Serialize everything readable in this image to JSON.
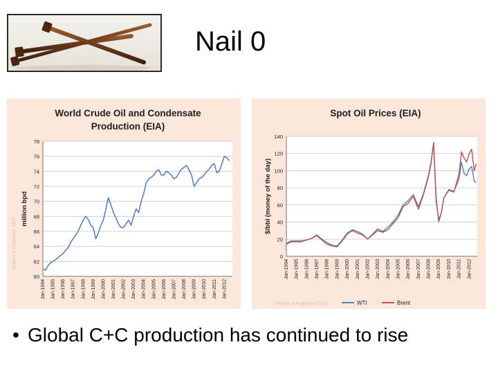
{
  "slide": {
    "title": "Nail 0",
    "bullet": "Global C+C production has continued to rise"
  },
  "photo": {
    "subject": "rusty-nails-photo"
  },
  "colors": {
    "panel_bg": "#fbe6da",
    "production_line": "#4472c4",
    "wti_line": "#4f81bd",
    "brent_line": "#c0504d"
  },
  "chart_data": [
    {
      "type": "line",
      "title": "World Crude Oil and Condensate Production (EIA)",
      "title_lines": [
        "World Crude Oil and Condensate",
        "Production (EIA)"
      ],
      "xlabel": "",
      "ylabel": "million bpd",
      "ylim": [
        60,
        78
      ],
      "yticks": [
        60,
        62,
        64,
        66,
        68,
        70,
        72,
        74,
        76,
        78
      ],
      "x_tick_labels": [
        "Jan-1994",
        "Jan-1995",
        "Jan-1996",
        "Jan-1997",
        "Jan-1998",
        "Jan-1999",
        "Jan-2000",
        "Jan-2001",
        "Jan-2002",
        "Jan-2003",
        "Jan-2004",
        "Jan-2005",
        "Jan-2006",
        "Jan-2007",
        "Jan-2008",
        "Jan-2009",
        "Jan-2010",
        "Jan-2011",
        "Jan-2012"
      ],
      "x_range": [
        1994.0,
        2012.8
      ],
      "grid": "horizontal",
      "legend": "none",
      "watermark": "Mearns & Koppelaar 2012",
      "series": [
        {
          "x": [
            1994.0,
            1994.25,
            1994.5,
            1994.75,
            1995.0,
            1995.25,
            1995.5,
            1995.75,
            1996.0,
            1996.25,
            1996.5,
            1996.75,
            1997.0,
            1997.25,
            1997.5,
            1997.75,
            1998.0,
            1998.25,
            1998.5,
            1998.75,
            1999.0,
            1999.25,
            1999.5,
            1999.75,
            2000.0,
            2000.25,
            2000.5,
            2000.75,
            2001.0,
            2001.25,
            2001.5,
            2001.75,
            2002.0,
            2002.25,
            2002.5,
            2002.75,
            2003.0,
            2003.25,
            2003.5,
            2003.75,
            2004.0,
            2004.25,
            2004.5,
            2004.75,
            2005.0,
            2005.25,
            2005.5,
            2005.75,
            2006.0,
            2006.25,
            2006.5,
            2006.75,
            2007.0,
            2007.25,
            2007.5,
            2007.75,
            2008.0,
            2008.25,
            2008.5,
            2008.75,
            2009.0,
            2009.25,
            2009.5,
            2009.75,
            2010.0,
            2010.25,
            2010.5,
            2010.75,
            2011.0,
            2011.25,
            2011.5,
            2011.75,
            2012.0,
            2012.25,
            2012.5
          ],
          "values": [
            61.0,
            60.8,
            61.4,
            61.8,
            62.0,
            62.2,
            62.5,
            62.8,
            63.0,
            63.5,
            63.8,
            64.5,
            65.0,
            65.5,
            66.0,
            66.8,
            67.5,
            68.0,
            67.6,
            66.8,
            66.5,
            65.0,
            65.8,
            66.8,
            67.5,
            69.0,
            70.5,
            69.5,
            68.5,
            67.8,
            67.0,
            66.5,
            66.5,
            67.0,
            67.5,
            66.8,
            68.0,
            69.0,
            68.5,
            70.0,
            71.0,
            72.5,
            73.0,
            73.2,
            73.5,
            74.0,
            74.2,
            73.5,
            73.5,
            74.0,
            73.8,
            73.5,
            73.0,
            73.2,
            73.8,
            74.3,
            74.5,
            74.8,
            74.2,
            73.5,
            72.0,
            72.5,
            73.0,
            73.2,
            73.5,
            74.0,
            74.3,
            74.8,
            75.0,
            73.8,
            74.0,
            75.0,
            76.0,
            75.8,
            75.4
          ]
        }
      ]
    },
    {
      "type": "line",
      "title": "Spot Oil Prices (EIA)",
      "xlabel": "",
      "ylabel": "$/bbl (money of the day)",
      "ylim": [
        0,
        140
      ],
      "yticks": [
        0,
        20,
        40,
        60,
        80,
        100,
        120,
        140
      ],
      "x_tick_labels": [
        "Jan-1994",
        "Jan-1995",
        "Jan-1996",
        "Jan-1997",
        "Jan-1998",
        "Jan-1999",
        "Jan-2000",
        "Jan-2001",
        "Jan-2002",
        "Jan-2003",
        "Jan-2004",
        "Jan-2005",
        "Jan-2006",
        "Jan-2007",
        "Jan-2008",
        "Jan-2009",
        "Jan-2010",
        "Jan-2011",
        "Jan-2012"
      ],
      "x_range": [
        1994.0,
        2012.8
      ],
      "grid": "horizontal",
      "legend": "bottom-center",
      "watermark": "Mearns & Koppelaar 2012",
      "series": [
        {
          "name": "WTI",
          "x": [
            1994.0,
            1994.5,
            1995.0,
            1995.5,
            1996.0,
            1996.5,
            1997.0,
            1997.5,
            1998.0,
            1998.5,
            1999.0,
            1999.5,
            2000.0,
            2000.5,
            2001.0,
            2001.5,
            2002.0,
            2002.5,
            2003.0,
            2003.5,
            2004.0,
            2004.5,
            2005.0,
            2005.5,
            2006.0,
            2006.5,
            2007.0,
            2007.5,
            2008.0,
            2008.25,
            2008.5,
            2008.75,
            2009.0,
            2009.25,
            2009.5,
            2010.0,
            2010.5,
            2011.0,
            2011.25,
            2011.5,
            2011.75,
            2012.0,
            2012.25,
            2012.5,
            2012.7
          ],
          "values": [
            15,
            18,
            18,
            18,
            19,
            21,
            25,
            20,
            16,
            13,
            12,
            19,
            27,
            31,
            29,
            26,
            20,
            26,
            32,
            29,
            34,
            40,
            48,
            60,
            65,
            72,
            58,
            73,
            95,
            110,
            133,
            70,
            40,
            50,
            68,
            78,
            76,
            90,
            110,
            97,
            94,
            102,
            105,
            88,
            86
          ]
        },
        {
          "name": "Brent",
          "x": [
            1994.0,
            1994.5,
            1995.0,
            1995.5,
            1996.0,
            1996.5,
            1997.0,
            1997.5,
            1998.0,
            1998.5,
            1999.0,
            1999.5,
            2000.0,
            2000.5,
            2001.0,
            2001.5,
            2002.0,
            2002.5,
            2003.0,
            2003.5,
            2004.0,
            2004.5,
            2005.0,
            2005.5,
            2006.0,
            2006.5,
            2007.0,
            2007.5,
            2008.0,
            2008.25,
            2008.5,
            2008.75,
            2009.0,
            2009.25,
            2009.5,
            2010.0,
            2010.5,
            2011.0,
            2011.25,
            2011.5,
            2011.75,
            2012.0,
            2012.25,
            2012.5,
            2012.7
          ],
          "values": [
            14,
            17,
            17,
            17,
            19,
            21,
            24,
            19,
            14,
            12,
            11,
            18,
            26,
            30,
            27,
            25,
            20,
            25,
            30,
            28,
            31,
            38,
            45,
            58,
            62,
            70,
            55,
            72,
            93,
            108,
            133,
            65,
            43,
            50,
            68,
            77,
            75,
            96,
            122,
            115,
            110,
            120,
            125,
            100,
            108
          ]
        }
      ]
    }
  ]
}
